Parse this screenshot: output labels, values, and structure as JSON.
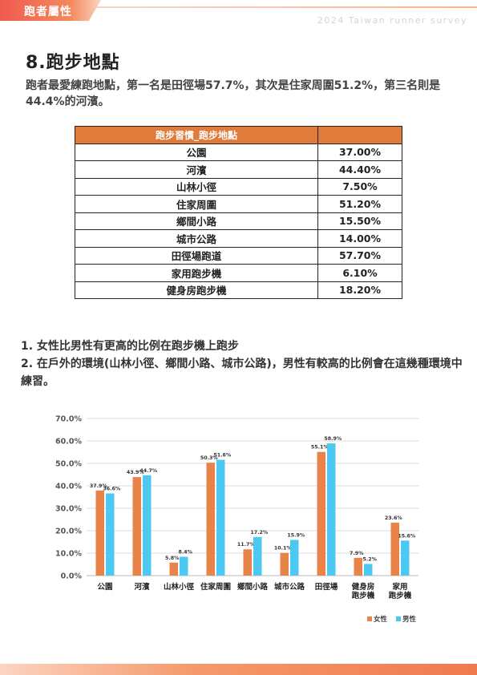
{
  "header": {
    "tag": "跑者屬性",
    "survey": "2024 Taiwan runner survey"
  },
  "title": "8.跑步地點",
  "intro": "跑者最愛練跑地點，第一名是田徑場57.7%，其次是住家周圍51.2%，第三名則是44.4%的河濱。",
  "table": {
    "header": [
      "跑步習慣_跑步地點",
      ""
    ],
    "rows": [
      {
        "place": "公園",
        "value": "37.00%"
      },
      {
        "place": "河濱",
        "value": "44.40%"
      },
      {
        "place": "山林小徑",
        "value": "7.50%"
      },
      {
        "place": "住家周圍",
        "value": "51.20%"
      },
      {
        "place": "鄉間小路",
        "value": "15.50%"
      },
      {
        "place": "城市公路",
        "value": "14.00%"
      },
      {
        "place": "田徑場跑道",
        "value": "57.70%"
      },
      {
        "place": "家用跑步機",
        "value": "6.10%"
      },
      {
        "place": "健身房跑步機",
        "value": "18.20%"
      }
    ]
  },
  "notes": [
    "1. 女性比男性有更高的比例在跑步機上跑步",
    "2. 在戶外的環境(山林小徑、鄉間小路、城市公路)，男性有較高的比例會在這幾種環境中練習。"
  ],
  "chart_data": {
    "type": "bar",
    "categories": [
      "公園",
      "河濱",
      "山林小徑",
      "住家周圍",
      "鄉間小路",
      "城市公路",
      "田徑場",
      "健身房\n跑步機",
      "家用\n跑步機"
    ],
    "series": [
      {
        "name": "女性",
        "color": "#e8844a",
        "values": [
          37.9,
          43.9,
          5.8,
          50.3,
          11.7,
          10.1,
          55.1,
          7.9,
          23.6
        ],
        "labels": [
          "37.9%",
          "43.9%",
          "5.8%",
          "50.3%",
          "11.7%",
          "10.1%",
          "55.1%",
          "7.9%",
          "23.6%"
        ]
      },
      {
        "name": "男性",
        "color": "#4dc8f0",
        "values": [
          36.6,
          44.7,
          8.4,
          51.6,
          17.2,
          15.9,
          58.9,
          5.2,
          15.6
        ],
        "labels": [
          "36.6%",
          "44.7%",
          "8.4%",
          "51.6%",
          "17.2%",
          "15.9%",
          "58.9%",
          "5.2%",
          "15.6%"
        ]
      }
    ],
    "ylim": [
      0,
      70
    ],
    "yticks": [
      "0.0%",
      "10.0%",
      "20.0%",
      "30.0%",
      "40.0%",
      "50.0%",
      "60.0%",
      "70.0%"
    ],
    "grid": true,
    "legend": "bottom-right"
  }
}
